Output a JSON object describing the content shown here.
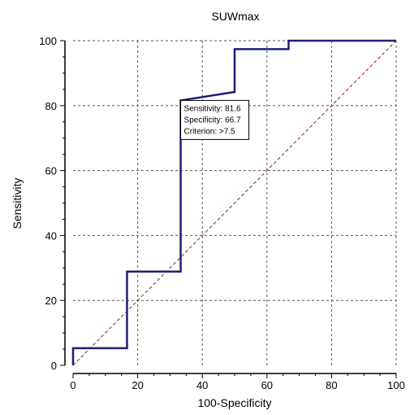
{
  "chart_data": {
    "type": "line",
    "title": "SUWmax",
    "xlabel": "100-Specificity",
    "ylabel": "Sensitivity",
    "xlim": [
      0,
      100
    ],
    "ylim": [
      0,
      100
    ],
    "xticks": [
      0,
      20,
      40,
      60,
      80,
      100
    ],
    "yticks": [
      0,
      20,
      40,
      60,
      80,
      100
    ],
    "grid": true,
    "series": [
      {
        "kind": "step",
        "color": "#1f1f7a",
        "points": [
          [
            0,
            0
          ],
          [
            0,
            5.3
          ],
          [
            16.7,
            5.3
          ],
          [
            16.7,
            28.9
          ],
          [
            33.3,
            28.9
          ],
          [
            33.3,
            81.6
          ],
          [
            50,
            84.2
          ],
          [
            50,
            97.4
          ],
          [
            66.7,
            97.4
          ],
          [
            66.7,
            100
          ],
          [
            100,
            100
          ]
        ]
      },
      {
        "kind": "reference",
        "color": "#8b1a2b",
        "points": [
          [
            0,
            0
          ],
          [
            100,
            100
          ]
        ]
      }
    ],
    "annotation": {
      "point": [
        33.3,
        81.6
      ],
      "lines": [
        "Sensitivity: 81.6",
        "Specificity: 66.7",
        "Criterion: >7.5"
      ]
    }
  }
}
